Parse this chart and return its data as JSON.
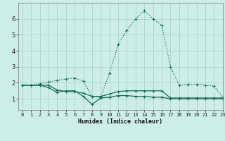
{
  "xlabel": "Humidex (Indice chaleur)",
  "background_color": "#cceee6",
  "grid_color": "#aad4cc",
  "line_color": "#1a6b5a",
  "xlim": [
    -0.5,
    23
  ],
  "ylim": [
    0.3,
    7.0
  ],
  "xticks": [
    0,
    1,
    2,
    3,
    4,
    5,
    6,
    7,
    8,
    9,
    10,
    11,
    12,
    13,
    14,
    15,
    16,
    17,
    18,
    19,
    20,
    21,
    22,
    23
  ],
  "yticks": [
    1,
    2,
    3,
    4,
    5,
    6
  ],
  "line1_x": [
    0,
    1,
    2,
    3,
    4,
    5,
    6,
    7,
    8,
    9,
    10,
    11,
    12,
    13,
    14,
    15,
    16,
    17,
    18,
    19,
    20,
    21,
    22,
    23
  ],
  "line1_y": [
    1.85,
    1.85,
    1.85,
    1.85,
    1.55,
    1.45,
    1.45,
    1.35,
    1.15,
    1.15,
    1.3,
    1.45,
    1.5,
    1.5,
    1.5,
    1.5,
    1.5,
    1.05,
    1.05,
    1.05,
    1.05,
    1.05,
    1.05,
    1.05
  ],
  "line2_x": [
    0,
    1,
    2,
    3,
    4,
    5,
    6,
    7,
    8,
    9,
    10,
    11,
    12,
    13,
    14,
    15,
    16,
    17,
    18,
    19,
    20,
    21,
    22,
    23
  ],
  "line2_y": [
    1.85,
    1.85,
    1.95,
    2.05,
    2.15,
    2.25,
    2.3,
    2.1,
    1.15,
    1.1,
    2.6,
    4.4,
    5.3,
    6.0,
    6.5,
    6.0,
    5.6,
    3.0,
    1.85,
    1.9,
    1.9,
    1.85,
    1.8,
    1.1
  ],
  "line3_x": [
    0,
    1,
    2,
    3,
    4,
    5,
    6,
    7,
    8,
    9,
    10,
    11,
    12,
    13,
    14,
    15,
    16,
    17,
    18,
    19,
    20,
    21,
    22,
    23
  ],
  "line3_y": [
    1.85,
    1.85,
    1.85,
    1.7,
    1.4,
    1.5,
    1.5,
    1.15,
    0.65,
    1.05,
    1.1,
    1.2,
    1.2,
    1.15,
    1.15,
    1.1,
    1.1,
    1.0,
    1.0,
    1.0,
    1.0,
    1.0,
    1.0,
    1.0
  ],
  "figsize": [
    3.2,
    2.0
  ],
  "dpi": 100
}
